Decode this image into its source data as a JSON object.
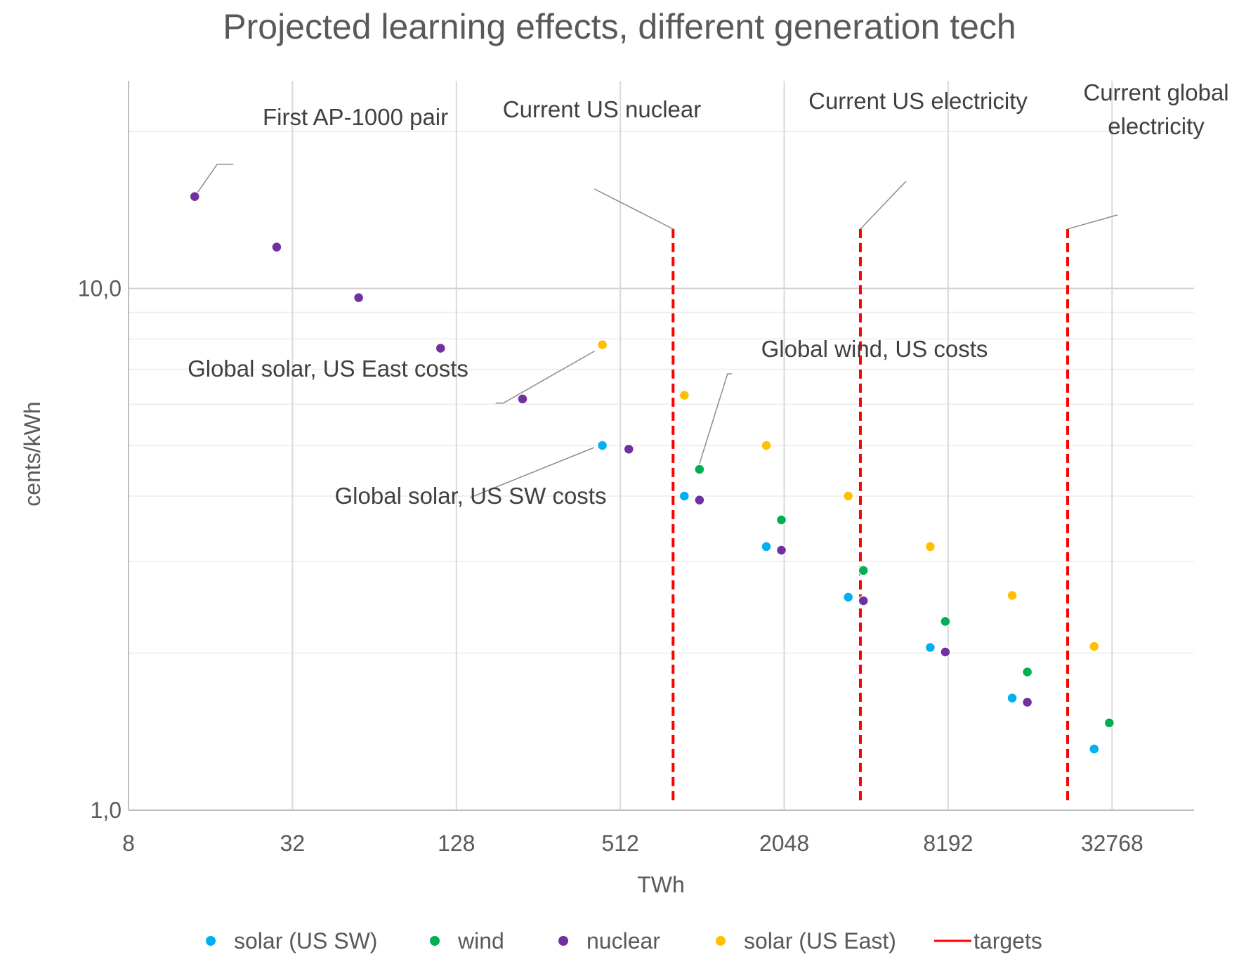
{
  "chart_data": {
    "type": "scatter",
    "title": "Projected learning effects, different generation tech",
    "xlabel": "TWh",
    "ylabel": "cents/kWh",
    "x_scale": "log2",
    "y_scale": "log10",
    "xlim": [
      8,
      65536
    ],
    "ylim": [
      1.0,
      25.0
    ],
    "x_ticks": [
      8,
      32,
      128,
      512,
      2048,
      8192,
      32768
    ],
    "x_tick_labels": [
      "8",
      "32",
      "128",
      "512",
      "2048",
      "8192",
      "32768"
    ],
    "y_tick_labels": [
      {
        "value": 10.0,
        "label": "10,0"
      },
      {
        "value": 1.0,
        "label": "1,0"
      }
    ],
    "grid": true,
    "legend_position": "bottom",
    "series": [
      {
        "name": "solar (US SW)",
        "color": "#00B0F0",
        "points": [
          {
            "x": 440,
            "y": 5.0
          },
          {
            "x": 880,
            "y": 4.0
          },
          {
            "x": 1760,
            "y": 3.2
          },
          {
            "x": 3520,
            "y": 2.56
          },
          {
            "x": 7040,
            "y": 2.05
          },
          {
            "x": 14080,
            "y": 1.64
          },
          {
            "x": 28160,
            "y": 1.31
          }
        ]
      },
      {
        "name": "wind",
        "color": "#00B050",
        "points": [
          {
            "x": 1000,
            "y": 4.5
          },
          {
            "x": 2000,
            "y": 3.6
          },
          {
            "x": 4000,
            "y": 2.88
          },
          {
            "x": 8000,
            "y": 2.3
          },
          {
            "x": 16000,
            "y": 1.84
          },
          {
            "x": 32000,
            "y": 1.47
          }
        ]
      },
      {
        "name": "nuclear",
        "color": "#7030A0",
        "points": [
          {
            "x": 14,
            "y": 15.0
          },
          {
            "x": 28,
            "y": 12.0
          },
          {
            "x": 56,
            "y": 9.6
          },
          {
            "x": 112,
            "y": 7.68
          },
          {
            "x": 224,
            "y": 6.14
          },
          {
            "x": 550,
            "y": 4.92
          },
          {
            "x": 1000,
            "y": 3.93
          },
          {
            "x": 2000,
            "y": 3.15
          },
          {
            "x": 4000,
            "y": 2.52
          },
          {
            "x": 8000,
            "y": 2.01
          },
          {
            "x": 16000,
            "y": 1.61
          }
        ]
      },
      {
        "name": "solar (US East)",
        "color": "#FFC000",
        "points": [
          {
            "x": 440,
            "y": 7.8
          },
          {
            "x": 880,
            "y": 6.24
          },
          {
            "x": 1760,
            "y": 5.0
          },
          {
            "x": 3520,
            "y": 4.0
          },
          {
            "x": 7040,
            "y": 3.2
          },
          {
            "x": 14080,
            "y": 2.58
          },
          {
            "x": 28160,
            "y": 2.06
          }
        ]
      }
    ],
    "targets": {
      "name": "targets",
      "color": "#FF0000",
      "lines": [
        {
          "x": 800,
          "y_from": 1.04,
          "y_to": 13.0
        },
        {
          "x": 3900,
          "y_from": 1.04,
          "y_to": 13.0
        },
        {
          "x": 22500,
          "y_from": 1.04,
          "y_to": 13.0
        }
      ]
    },
    "annotations": [
      {
        "text": "First AP-1000 pair",
        "x": 14,
        "y": 15.0
      },
      {
        "text": "Current US nuclear",
        "x": 800,
        "y": 13.0
      },
      {
        "text": "Current US electricity",
        "x": 3900,
        "y": 13.0
      },
      {
        "text": "Current global",
        "text2": "electricity",
        "x": 22500,
        "y": 13.0
      },
      {
        "text": "Global solar, US East costs",
        "x": 440,
        "y": 7.8
      },
      {
        "text": "Global wind, US costs",
        "x": 1000,
        "y": 4.5
      },
      {
        "text": "Global solar, US SW costs",
        "x": 440,
        "y": 5.0
      }
    ]
  }
}
